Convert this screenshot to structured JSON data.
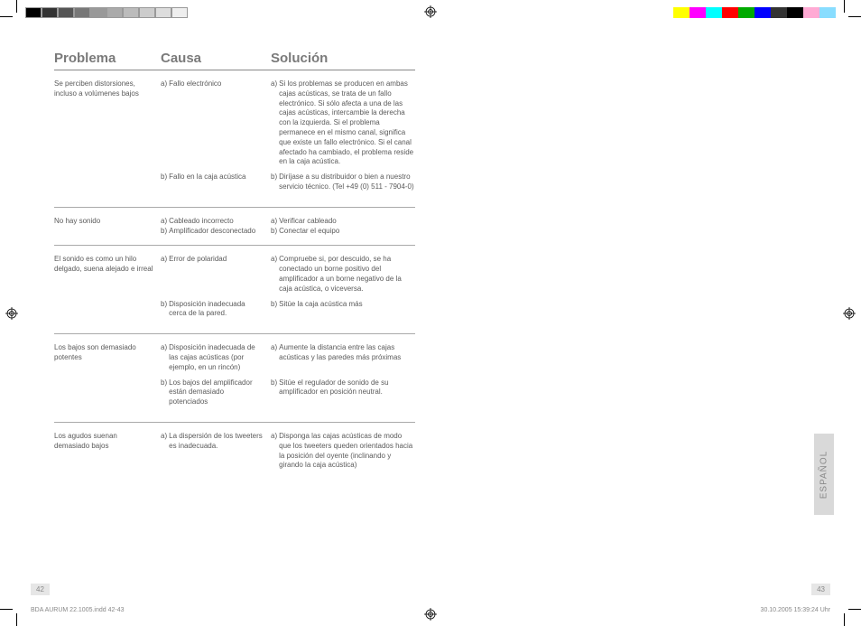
{
  "colorbar_left": [
    "#000000",
    "#333333",
    "#555555",
    "#777777",
    "#999999",
    "#aaaaaa",
    "#bbbbbb",
    "#cccccc",
    "#dddddd",
    "#eeeeee"
  ],
  "colorbar_right": [
    "#ffff00",
    "#ff00ff",
    "#00ffff",
    "#ff0000",
    "#00aa00",
    "#0000ff",
    "#333333",
    "#000000",
    "#ffaad4",
    "#88ddff"
  ],
  "headers": {
    "problema": "Problema",
    "causa": "Causa",
    "solucion": "Solución"
  },
  "tab": "ESPAÑOL",
  "page_left": "42",
  "page_right": "43",
  "footer_left": "BDA AURUM 22.1005.indd   42-43",
  "footer_right": "30.10.2005   15:39:24 Uhr",
  "sections": [
    {
      "problem": "Se perciben distorsiones, incluso a volúmenes bajos",
      "rows": [
        {
          "c_lbl": "a)",
          "c": "Fallo electrónico",
          "s_lbl": "a)",
          "s": "Si los problemas se producen en ambas cajas acústicas, se trata de un fallo electrónico. Si sólo afecta a una de las cajas acústicas, intercambie la derecha con la izquierda. Si el problema permanece en el mismo canal, significa que existe un fallo electrónico. Si el canal afectado ha cambiado, el problema reside en la caja acústica."
        },
        {
          "c_lbl": "b)",
          "c": "Fallo en la caja acústica",
          "s_lbl": "b)",
          "s": "Diríjase a su distribuidor o bien a nuestro servicio técnico. (Tel +49 (0) 511 - 7904-0)"
        }
      ]
    },
    {
      "problem": "No hay sonido",
      "rows": [
        {
          "c_lbl": "a)",
          "c": "Cableado incorrecto",
          "s_lbl": "a)",
          "s": "Verificar cableado"
        },
        {
          "c_lbl": "b)",
          "c": "Amplificador desconectado",
          "s_lbl": "b)",
          "s": "Conectar el equipo"
        }
      ],
      "compact": true
    },
    {
      "problem": "El sonido es como un hilo delgado, suena alejado e irreal",
      "rows": [
        {
          "c_lbl": "a)",
          "c": "Error de polaridad",
          "s_lbl": "a)",
          "s": "Compruebe si, por descuido, se ha conectado un borne positivo del amplificador a un borne negativo de la caja acústica, o viceversa."
        },
        {
          "c_lbl": "b)",
          "c": "Disposición inadecuada cerca de la pared.",
          "s_lbl": "b)",
          "s": "Sitúe la caja acústica más"
        }
      ]
    },
    {
      "problem": "Los bajos son demasiado potentes",
      "rows": [
        {
          "c_lbl": "a)",
          "c": "Disposición inadecuada de las cajas acústicas (por ejemplo, en un rincón)",
          "s_lbl": "a)",
          "s": "Aumente la distancia entre las cajas acústicas y las paredes más próximas"
        },
        {
          "c_lbl": "b)",
          "c": "Los bajos del amplificador están demasiado potenciados",
          "s_lbl": "b)",
          "s": "Sitúe el regulador de sonido de su amplificador en posición neutral."
        }
      ]
    },
    {
      "problem": "Los agudos suenan demasiado bajos",
      "rows": [
        {
          "c_lbl": "a)",
          "c": "La dispersión de los tweeters es inadecuada.",
          "s_lbl": "a)",
          "s": "Disponga las cajas acústicas de modo que los tweeters queden orientados hacia la posición del oyente (inclinando y girando la caja acústica)"
        }
      ],
      "noborder": true
    }
  ]
}
